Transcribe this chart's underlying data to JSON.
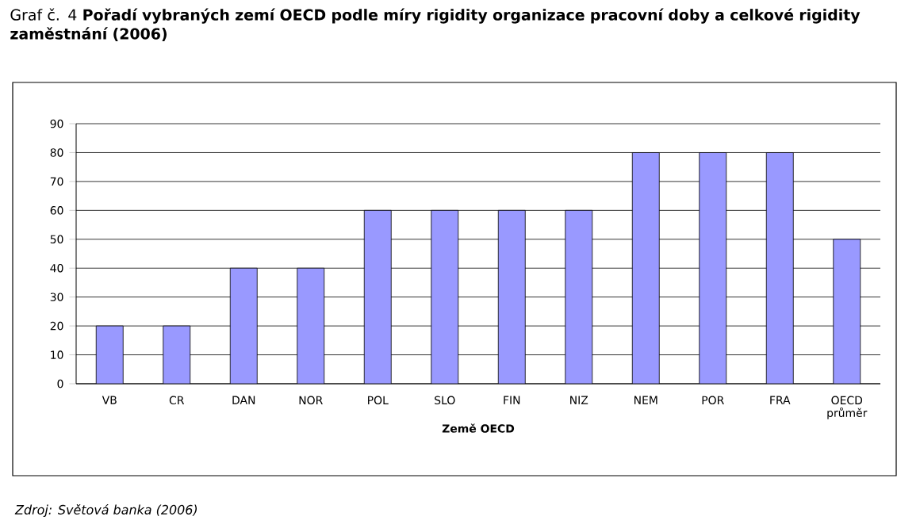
{
  "chart_data": {
    "type": "bar",
    "title": "Graf č. 4 **Pořadí vybraných zemí OECD podle míry rigidity organizace pracovní doby a celkové rigidity zaměstnání (2006)**",
    "xlabel": "Země OECD",
    "categories": [
      "VB",
      "CR",
      "DAN",
      "NOR",
      "POL",
      "SLO",
      "FIN",
      "NIZ",
      "NEM",
      "POR",
      "FRA",
      "OECD průměr"
    ],
    "values": [
      20,
      20,
      40,
      40,
      60,
      60,
      60,
      60,
      80,
      80,
      80,
      50
    ],
    "color": "#9999ff",
    "ylim": [
      0,
      90
    ],
    "yticks": [
      0,
      10,
      20,
      30,
      40,
      50,
      60,
      70,
      80,
      90
    ],
    "grid": "y",
    "annotations": [
      "*Zdroj: Světová banka (2006)*"
    ]
  }
}
